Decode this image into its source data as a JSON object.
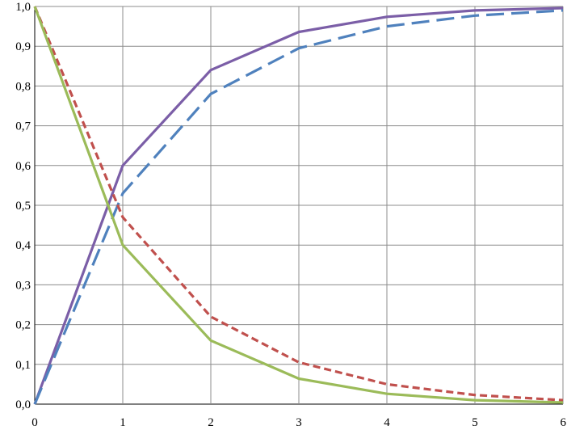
{
  "chart_data": {
    "type": "line",
    "title": "",
    "xlabel": "",
    "ylabel": "",
    "x": [
      0,
      1,
      2,
      3,
      4,
      5,
      6
    ],
    "xlim": [
      0,
      6
    ],
    "ylim": [
      0,
      1
    ],
    "grid": true,
    "legend": "none",
    "x_ticks": [
      "0",
      "1",
      "2",
      "3",
      "4",
      "5",
      "6"
    ],
    "y_ticks": [
      "0,0",
      "0,1",
      "0,2",
      "0,3",
      "0,4",
      "0,5",
      "0,6",
      "0,7",
      "0,8",
      "0,9",
      "1,0"
    ],
    "series": [
      {
        "values": [
          0.0,
          0.6,
          0.84,
          0.936,
          0.974,
          0.99,
          0.996
        ],
        "color": "#7b5ea7",
        "dash": "solid"
      },
      {
        "values": [
          0.0,
          0.53,
          0.78,
          0.895,
          0.95,
          0.977,
          0.99
        ],
        "color": "#4f81bd",
        "dash": "long-dash"
      },
      {
        "values": [
          1.0,
          0.47,
          0.22,
          0.105,
          0.05,
          0.023,
          0.01
        ],
        "color": "#c0504d",
        "dash": "short-dash"
      },
      {
        "values": [
          1.0,
          0.4,
          0.16,
          0.064,
          0.026,
          0.01,
          0.004
        ],
        "color": "#9bbb59",
        "dash": "solid"
      }
    ]
  }
}
